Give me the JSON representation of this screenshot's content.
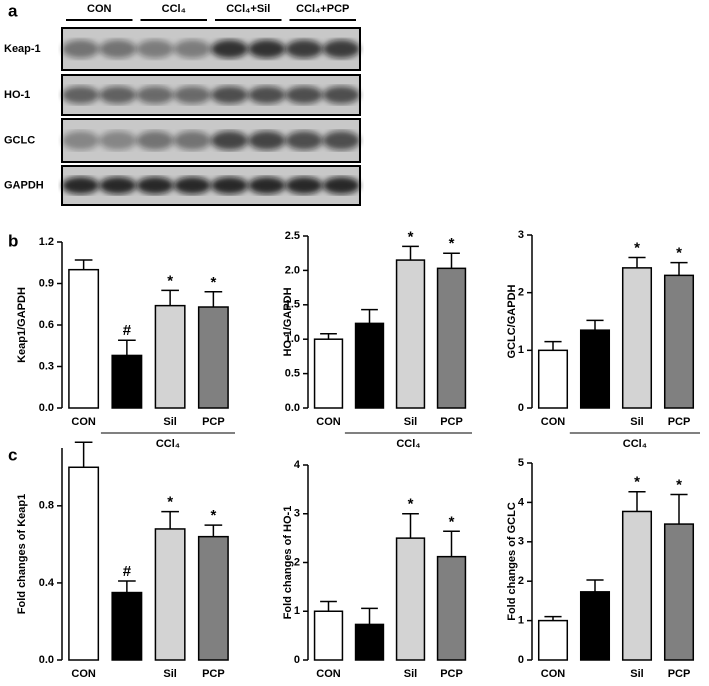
{
  "panels": [
    "a",
    "b",
    "c"
  ],
  "panel_a": {
    "lanes": [
      "CON",
      "CCl₄",
      "CCl₄+Sil",
      "CCl₄+PCP"
    ],
    "rows": [
      "Keap-1",
      "HO-1",
      "GCLC",
      "GAPDH"
    ]
  },
  "chart_data": [
    {
      "type": "bar",
      "ylabel": "Keap1/GAPDH",
      "categories": [
        "CON",
        null,
        "Sil",
        "PCP"
      ],
      "group_label": "CCl₄",
      "values": [
        1.0,
        0.38,
        0.74,
        0.73
      ],
      "errors": [
        0.07,
        0.11,
        0.11,
        0.11
      ],
      "annotations": [
        null,
        "#",
        "*",
        "*"
      ],
      "colors": [
        "#ffffff",
        "#000000",
        "#d3d3d3",
        "#808080"
      ],
      "ylim": [
        0,
        1.2
      ],
      "yticks": [
        {
          "value": 0,
          "label": "0.0"
        },
        0.3,
        0.6,
        0.9,
        1.2
      ]
    },
    {
      "type": "bar",
      "ylabel": "HO-1/GAPDH",
      "categories": [
        "CON",
        null,
        "Sil",
        "PCP"
      ],
      "group_label": "CCl₄",
      "values": [
        1.0,
        1.23,
        2.15,
        2.03
      ],
      "errors": [
        0.08,
        0.2,
        0.2,
        0.22
      ],
      "annotations": [
        null,
        null,
        "*",
        "*"
      ],
      "colors": [
        "#ffffff",
        "#000000",
        "#d3d3d3",
        "#808080"
      ],
      "ylim": [
        0,
        2.5
      ],
      "yticks": [
        {
          "value": 0,
          "label": "0.0"
        },
        0.5,
        {
          "value": 1,
          "label": "1.0"
        },
        1.5,
        {
          "value": 2,
          "label": "2.0"
        },
        2.5
      ]
    },
    {
      "type": "bar",
      "ylabel": "GCLC/GAPDH",
      "categories": [
        "CON",
        null,
        "Sil",
        "PCP"
      ],
      "group_label": "CCl₄",
      "values": [
        1.0,
        1.35,
        2.43,
        2.3
      ],
      "errors": [
        0.15,
        0.17,
        0.18,
        0.22
      ],
      "annotations": [
        null,
        null,
        "*",
        "*"
      ],
      "colors": [
        "#ffffff",
        "#000000",
        "#d3d3d3",
        "#808080"
      ],
      "ylim": [
        0,
        3
      ],
      "yticks": [
        0,
        1,
        2,
        3
      ]
    },
    {
      "type": "bar",
      "ylabel": "Fold changes of Keap1",
      "categories": [
        "CON",
        null,
        "Sil",
        "PCP"
      ],
      "group_label": "CCl₄",
      "values": [
        1.0,
        0.35,
        0.68,
        0.64
      ],
      "errors": [
        0.13,
        0.06,
        0.09,
        0.06
      ],
      "annotations": [
        null,
        "#",
        "*",
        "*"
      ],
      "colors": [
        "#ffffff",
        "#000000",
        "#d3d3d3",
        "#808080"
      ],
      "ylim": [
        0,
        1.1
      ],
      "yticks": [
        {
          "value": 0,
          "label": "0.0"
        },
        0.4,
        0.8
      ]
    },
    {
      "type": "bar",
      "ylabel": "Fold changes of HO-1",
      "categories": [
        "CON",
        null,
        "Sil",
        "PCP"
      ],
      "group_label": "CCl₄",
      "values": [
        1.0,
        0.73,
        2.5,
        2.12
      ],
      "errors": [
        0.2,
        0.33,
        0.5,
        0.52
      ],
      "annotations": [
        null,
        null,
        "*",
        "*"
      ],
      "colors": [
        "#ffffff",
        "#000000",
        "#d3d3d3",
        "#808080"
      ],
      "ylim": [
        0,
        4
      ],
      "yticks": [
        0,
        1,
        2,
        3,
        4
      ]
    },
    {
      "type": "bar",
      "ylabel": "Fold changes of GCLC",
      "categories": [
        "CON",
        null,
        "Sil",
        "PCP"
      ],
      "group_label": "CCl₄",
      "values": [
        1.0,
        1.73,
        3.77,
        3.45
      ],
      "errors": [
        0.1,
        0.3,
        0.5,
        0.75
      ],
      "annotations": [
        null,
        null,
        "*",
        "*"
      ],
      "colors": [
        "#ffffff",
        "#000000",
        "#d3d3d3",
        "#808080"
      ],
      "ylim": [
        0,
        5
      ],
      "yticks": [
        0,
        1,
        2,
        3,
        4,
        5
      ]
    }
  ]
}
